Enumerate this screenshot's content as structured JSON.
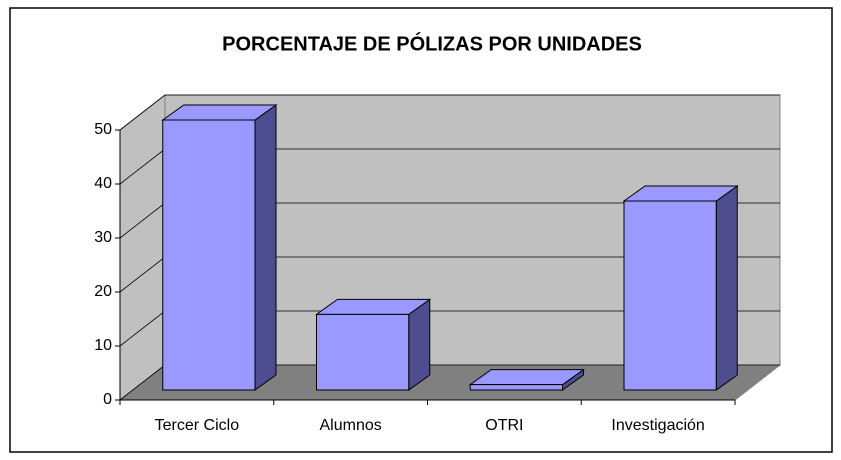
{
  "chart_data": {
    "type": "bar",
    "title": "PORCENTAJE DE PÓLIZAS POR UNIDADES",
    "categories": [
      "Tercer Ciclo",
      "Alumnos",
      "OTRI",
      "Investigación"
    ],
    "values": [
      50,
      14,
      1,
      35
    ],
    "color": "#9999ff",
    "ylim": [
      0,
      50
    ],
    "yticks": [
      0,
      10,
      20,
      30,
      40,
      50
    ],
    "grid": true
  }
}
